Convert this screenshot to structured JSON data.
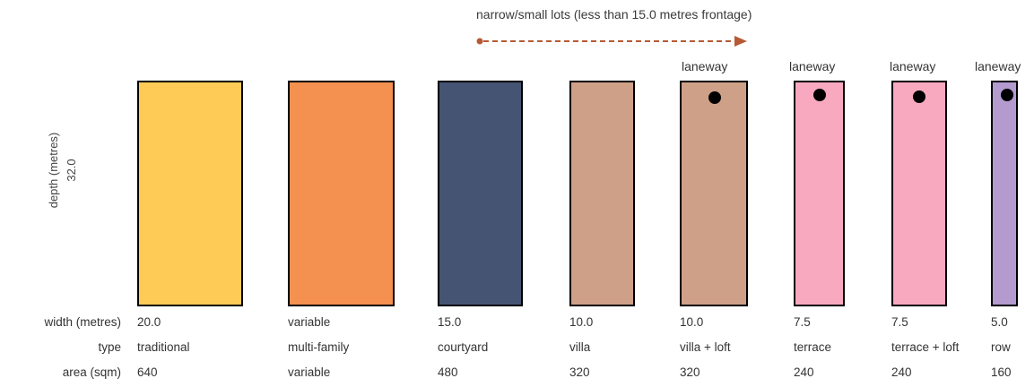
{
  "header": {
    "text": "narrow/small lots (less than 15.0 metres frontage)",
    "arrow_color": "#b65a35"
  },
  "depth_axis": {
    "label": "depth (metres)",
    "value": "32.0"
  },
  "row_labels": {
    "width": "width (metres)",
    "type": "type",
    "area": "area (sqm)"
  },
  "lane_label": "laneway",
  "lots": [
    {
      "width": "20.0",
      "type": "traditional",
      "area": "640",
      "color": "#fecb57",
      "laneway": false
    },
    {
      "width": "variable",
      "type": "multi-family",
      "area": "variable",
      "color": "#f49150",
      "laneway": false
    },
    {
      "width": "15.0",
      "type": "courtyard",
      "area": "480",
      "color": "#465474",
      "laneway": false
    },
    {
      "width": "10.0",
      "type": "villa",
      "area": "320",
      "color": "#cfa088",
      "laneway": false
    },
    {
      "width": "10.0",
      "type": "villa + loft",
      "area": "320",
      "color": "#cfa088",
      "laneway": true
    },
    {
      "width": "7.5",
      "type": "terrace",
      "area": "240",
      "color": "#f8a9bf",
      "laneway": true
    },
    {
      "width": "7.5",
      "type": "terrace + loft",
      "area": "240",
      "color": "#f8a9bf",
      "laneway": true
    },
    {
      "width": "5.0",
      "type": "row",
      "area": "160",
      "color": "#b39bd0",
      "laneway": true
    }
  ]
}
